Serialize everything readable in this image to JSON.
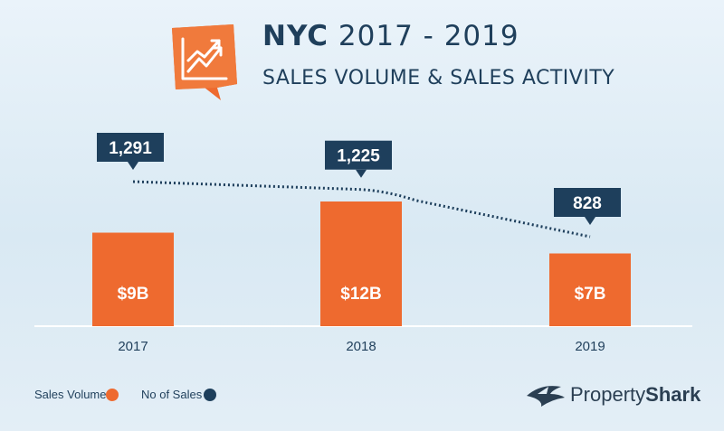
{
  "header": {
    "title_bold": "NYC",
    "title_rest": "2017 - 2019",
    "subtitle": "SALES VOLUME & SALES ACTIVITY"
  },
  "brand": {
    "name_regular": "Property",
    "name_bold": "Shark",
    "icon": "shark-logo-icon"
  },
  "colors": {
    "volume": "#ee6a2f",
    "sales": "#1e3f5c",
    "baseline": "#ffffff"
  },
  "chart_data": {
    "type": "bar",
    "categories": [
      "2017",
      "2018",
      "2019"
    ],
    "series": [
      {
        "name": "Sales Volume",
        "type": "bar",
        "values": [
          9,
          12,
          7
        ],
        "labels": [
          "$9B",
          "$12B",
          "$7B"
        ]
      },
      {
        "name": "No of Sales",
        "type": "line",
        "values": [
          1291,
          1225,
          828
        ],
        "labels": [
          "1,291",
          "1,225",
          "828"
        ]
      }
    ],
    "legend": {
      "position": "bottom-left",
      "items": [
        "Sales Volume",
        "No of Sales"
      ]
    },
    "grid": false
  }
}
